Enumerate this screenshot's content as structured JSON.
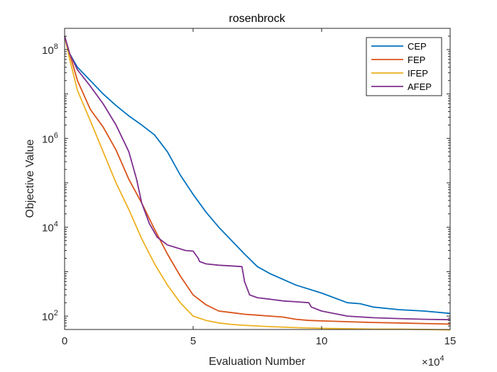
{
  "chart_data": {
    "type": "line",
    "title": "rosenbrock",
    "xlabel": "Evaluation Number",
    "ylabel": "Objective Value",
    "xlim": [
      0,
      150000
    ],
    "ylim": [
      50,
      300000000
    ],
    "yscale": "log",
    "x_ticks": [
      {
        "value": 0,
        "label": "0"
      },
      {
        "value": 50000,
        "label": "5"
      },
      {
        "value": 100000,
        "label": "10"
      },
      {
        "value": 150000,
        "label": "15"
      }
    ],
    "x_exponent": {
      "base": "×10",
      "power": "4"
    },
    "y_ticks": [
      {
        "value": 100,
        "base": "10",
        "power": "2"
      },
      {
        "value": 10000,
        "base": "10",
        "power": "4"
      },
      {
        "value": 1000000,
        "base": "10",
        "power": "6"
      },
      {
        "value": 100000000,
        "base": "10",
        "power": "8"
      }
    ],
    "grid": false,
    "legend_position": "top-right",
    "series": [
      {
        "name": "CEP",
        "color": "#0072BD",
        "x": [
          0,
          2000,
          5000,
          10000,
          15000,
          20000,
          25000,
          30000,
          35000,
          40000,
          45000,
          50000,
          55000,
          60000,
          65000,
          70000,
          75000,
          80000,
          90000,
          100000,
          110000,
          115000,
          120000,
          130000,
          140000,
          150000
        ],
        "y": [
          200000000,
          80000000,
          40000000,
          20000000,
          10000000,
          5500000,
          3200000,
          2000000,
          1200000,
          500000,
          150000,
          55000,
          22000,
          10000,
          5000,
          2500,
          1300,
          900,
          500,
          330,
          200,
          190,
          160,
          140,
          130,
          115
        ]
      },
      {
        "name": "FEP",
        "color": "#D95319",
        "x": [
          0,
          2000,
          5000,
          10000,
          15000,
          20000,
          25000,
          30000,
          35000,
          40000,
          45000,
          50000,
          55000,
          60000,
          65000,
          70000,
          75000,
          80000,
          85000,
          90000,
          95000,
          100000,
          110000,
          120000,
          130000,
          140000,
          150000
        ],
        "y": [
          200000000,
          80000000,
          20000000,
          4500000,
          1800000,
          550000,
          120000,
          35000,
          9000,
          2500,
          800,
          300,
          180,
          130,
          120,
          110,
          105,
          100,
          95,
          85,
          80,
          78,
          75,
          72,
          70,
          68,
          66
        ]
      },
      {
        "name": "IFEP",
        "color": "#EDB120",
        "x": [
          0,
          2000,
          5000,
          10000,
          15000,
          20000,
          25000,
          30000,
          35000,
          40000,
          45000,
          50000,
          55000,
          60000,
          65000,
          70000,
          80000,
          90000,
          100000,
          110000,
          120000,
          130000,
          140000,
          150000
        ],
        "y": [
          200000000,
          60000000,
          12000000,
          2500000,
          500000,
          100000,
          25000,
          5500,
          1500,
          500,
          200,
          100,
          80,
          70,
          65,
          62,
          58,
          55,
          53,
          52,
          51,
          51,
          50,
          49
        ]
      },
      {
        "name": "AFEP",
        "color": "#7E2F8E",
        "x": [
          0,
          2000,
          5000,
          10000,
          15000,
          20000,
          25000,
          28000,
          30000,
          33000,
          36000,
          40000,
          44000,
          47000,
          50000,
          52000,
          52500,
          55000,
          60000,
          65000,
          69000,
          70000,
          72000,
          75000,
          80000,
          85000,
          90000,
          95000,
          96000,
          100000,
          110000,
          120000,
          130000,
          140000,
          150000
        ],
        "y": [
          200000000,
          80000000,
          35000000,
          15000000,
          6000000,
          2000000,
          500000,
          120000,
          35000,
          12000,
          6000,
          4000,
          3400,
          3000,
          2900,
          2000,
          1700,
          1500,
          1400,
          1350,
          1300,
          600,
          300,
          260,
          240,
          220,
          210,
          200,
          160,
          130,
          100,
          92,
          88,
          85,
          83
        ]
      }
    ]
  }
}
